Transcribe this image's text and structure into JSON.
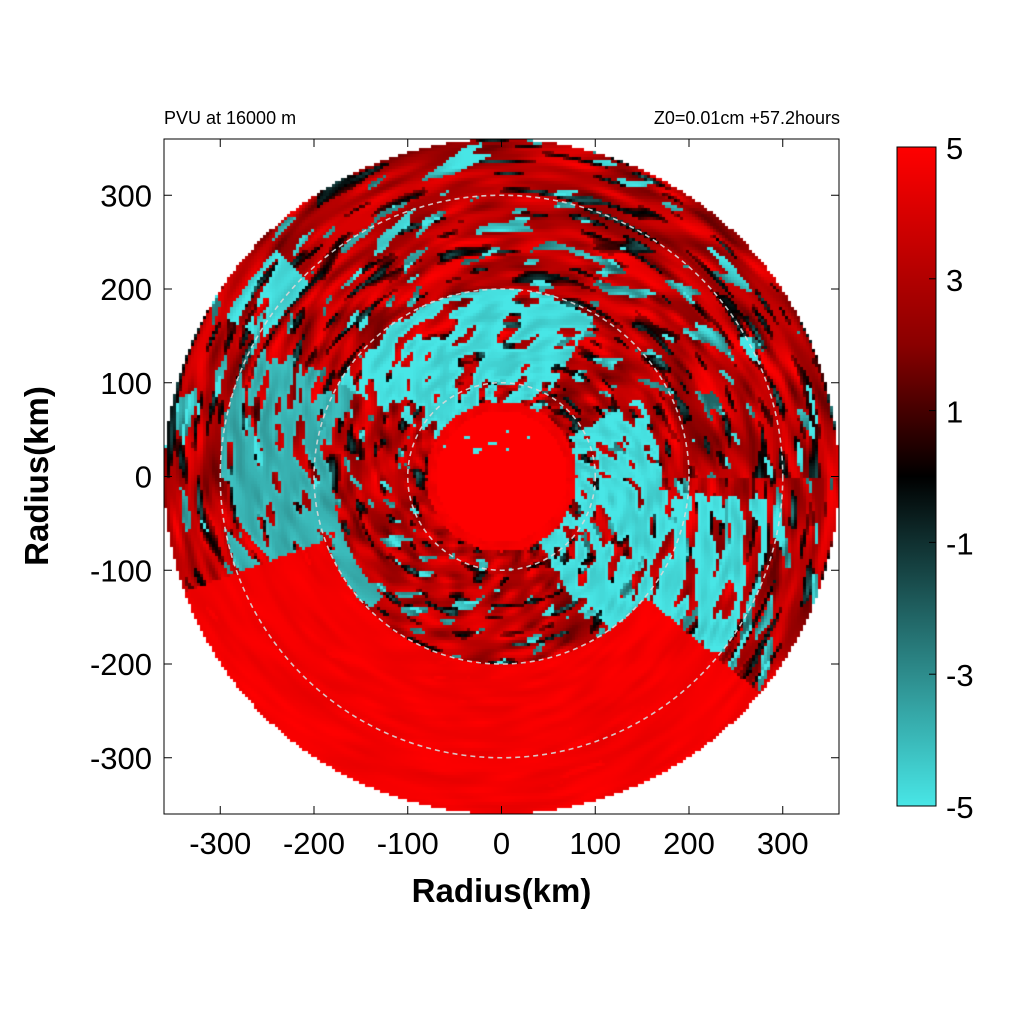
{
  "title_left": "PVU at 16000 m",
  "title_right": "Z0=0.01cm  +57.2hours",
  "colors": {
    "positive": "#ff0000",
    "dark_red": "#8a0000",
    "zero": "#000000",
    "dark_cyan": "#1f5f5f",
    "negative": "#48e6e6",
    "ring": "#d8d8d8"
  },
  "chart_data": {
    "type": "heatmap",
    "field": "PVU",
    "projection": "polar",
    "xlabel": "Radius(km)",
    "ylabel": "Radius(km)",
    "xlim": [
      -360,
      360
    ],
    "ylim": [
      -360,
      360
    ],
    "data_radius_max": 360,
    "x_ticks": [
      -300,
      -200,
      -100,
      0,
      100,
      200,
      300
    ],
    "y_ticks": [
      300,
      200,
      100,
      0,
      -100,
      -200,
      -300
    ],
    "x_tick_labels": [
      "-300",
      "-200",
      "-100",
      "0",
      "100",
      "200",
      "300"
    ],
    "y_tick_labels": [
      "300",
      "200",
      "100",
      "0",
      "-100",
      "-200",
      "-300"
    ],
    "reference_circles_km": [
      100,
      200,
      300
    ],
    "colorbar": {
      "range": [
        -5,
        5
      ],
      "ticks": [
        5,
        3,
        1,
        -1,
        -3,
        -5
      ],
      "tick_labels": [
        "5",
        "3",
        "1",
        "-1",
        "-3",
        "-5"
      ]
    },
    "regions": [
      {
        "name": "negative PV band north-west inner",
        "value": -5,
        "r_range_km": [
          80,
          200
        ],
        "az_range_deg": [
          60,
          150
        ]
      },
      {
        "name": "negative PV band east inner",
        "value": -5,
        "r_range_km": [
          70,
          170
        ],
        "az_range_deg": [
          -60,
          30
        ]
      },
      {
        "name": "negative PV patches south-east",
        "value": -5,
        "r_range_km": [
          150,
          300
        ],
        "az_range_deg": [
          -55,
          -5
        ]
      },
      {
        "name": "negative PV patches west",
        "value": -4,
        "r_range_km": [
          180,
          300
        ],
        "az_range_deg": [
          150,
          225
        ]
      },
      {
        "name": "negative PV patch far north-west",
        "value": -5,
        "r_range_km": [
          290,
          340
        ],
        "az_range_deg": [
          135,
          150
        ]
      },
      {
        "name": "positive PV core",
        "value": 5,
        "r_range_km": [
          0,
          80
        ],
        "az_range_deg": [
          0,
          360
        ]
      },
      {
        "name": "positive PV outer south",
        "value": 5,
        "r_range_km": [
          200,
          360
        ],
        "az_range_deg": [
          200,
          320
        ]
      }
    ]
  }
}
